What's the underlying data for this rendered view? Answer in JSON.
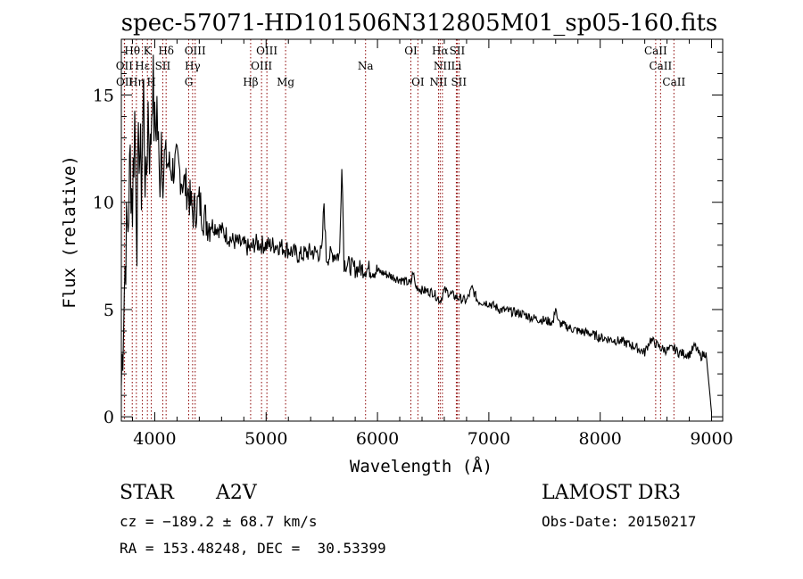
{
  "chart_data": {
    "type": "line",
    "title": "spec-57071-HD101506N312805M01_sp05-160.fits",
    "xlabel": "Wavelength (Å)",
    "ylabel": "Flux (relative)",
    "xlim": [
      3700,
      9100
    ],
    "ylim": [
      -0.2,
      17.6
    ],
    "xticks": [
      4000,
      5000,
      6000,
      7000,
      8000,
      9000
    ],
    "yticks": [
      0,
      5,
      10,
      15
    ],
    "line_color": "#000000",
    "marker_color": "#8b0000",
    "series": [
      {
        "name": "spectrum",
        "x": [
          3700,
          3720,
          3740,
          3760,
          3780,
          3800,
          3820,
          3840,
          3860,
          3880,
          3900,
          3920,
          3940,
          3960,
          3980,
          4000,
          4020,
          4040,
          4060,
          4080,
          4100,
          4150,
          4200,
          4250,
          4300,
          4340,
          4400,
          4450,
          4500,
          4600,
          4700,
          4800,
          4861,
          4900,
          5000,
          5100,
          5200,
          5300,
          5400,
          5500,
          5520,
          5540,
          5600,
          5660,
          5680,
          5700,
          5800,
          5900,
          6000,
          6100,
          6200,
          6300,
          6320,
          6340,
          6400,
          6500,
          6563,
          6600,
          6700,
          6800,
          6850,
          6900,
          7000,
          7100,
          7200,
          7300,
          7400,
          7500,
          7580,
          7600,
          7620,
          7700,
          7800,
          7900,
          8000,
          8100,
          8200,
          8300,
          8400,
          8450,
          8500,
          8542,
          8600,
          8662,
          8700,
          8800,
          8850,
          8900,
          8950,
          9000
        ],
        "y": [
          1.5,
          5,
          8,
          9,
          12,
          10,
          14,
          9,
          13,
          11,
          15,
          10,
          14.5,
          12,
          16,
          13,
          14.5,
          11,
          13.5,
          11.5,
          12,
          11.5,
          11.8,
          11,
          10.5,
          9.5,
          10,
          9.2,
          9,
          8.7,
          8.2,
          8,
          7.8,
          8.1,
          8,
          8,
          7.8,
          7.5,
          7.7,
          7.6,
          10,
          7.4,
          7.6,
          7.5,
          12,
          7.2,
          6.9,
          6.9,
          6.8,
          6.6,
          6.4,
          6.2,
          6.8,
          6.1,
          5.9,
          5.8,
          5.4,
          5.9,
          5.6,
          5.4,
          6,
          5.4,
          5.3,
          5.0,
          4.9,
          4.8,
          4.6,
          4.5,
          4.4,
          5.2,
          4.4,
          4.2,
          4.0,
          3.9,
          3.7,
          3.6,
          3.5,
          3.3,
          3.0,
          3.6,
          3.4,
          3.2,
          3.1,
          3.2,
          3.0,
          2.9,
          3.3,
          2.8,
          3.0,
          0.2
        ]
      }
    ],
    "line_markers": [
      {
        "label": "Hθ",
        "x": 3798,
        "row": 0
      },
      {
        "label": "K",
        "x": 3934,
        "row": 0
      },
      {
        "label": "Hδ",
        "x": 4102,
        "row": 0
      },
      {
        "label": "OIII",
        "x": 4363,
        "row": 0
      },
      {
        "label": "OIII",
        "x": 5007,
        "row": 0
      },
      {
        "label": "OI",
        "x": 6300,
        "row": 0
      },
      {
        "label": "Hα",
        "x": 6563,
        "row": 0
      },
      {
        "label": "SII",
        "x": 6716,
        "row": 0
      },
      {
        "label": "CaII",
        "x": 8498,
        "row": 0
      },
      {
        "label": "OII",
        "x": 3727,
        "row": 1
      },
      {
        "label": "Hε",
        "x": 3889,
        "row": 1
      },
      {
        "label": "SII",
        "x": 4072,
        "row": 1
      },
      {
        "label": "Hγ",
        "x": 4340,
        "row": 1
      },
      {
        "label": "OIII",
        "x": 4959,
        "row": 1
      },
      {
        "label": "Na",
        "x": 5893,
        "row": 1
      },
      {
        "label": "NII",
        "x": 6583,
        "row": 1
      },
      {
        "label": "Li",
        "x": 6708,
        "row": 1
      },
      {
        "label": "CaII",
        "x": 8542,
        "row": 1
      },
      {
        "label": "OII",
        "x": 3729,
        "row": 2
      },
      {
        "label": "Hη",
        "x": 3835,
        "row": 2
      },
      {
        "label": "H",
        "x": 3969,
        "row": 2
      },
      {
        "label": "G",
        "x": 4305,
        "row": 2
      },
      {
        "label": "Hβ",
        "x": 4861,
        "row": 2
      },
      {
        "label": "Mg",
        "x": 5175,
        "row": 2
      },
      {
        "label": "OI",
        "x": 6363,
        "row": 2
      },
      {
        "label": "NII",
        "x": 6548,
        "row": 2
      },
      {
        "label": "SII",
        "x": 6731,
        "row": 2
      },
      {
        "label": "CaII",
        "x": 8662,
        "row": 2
      }
    ]
  },
  "info": {
    "class": "STAR",
    "subclass": "A2V",
    "survey": "LAMOST DR3",
    "cz": "cz = −189.2 ± 68.7 km/s",
    "obsdate": "Obs-Date: 20150217",
    "radec": "RA = 153.48248, DEC =  30.53399"
  }
}
